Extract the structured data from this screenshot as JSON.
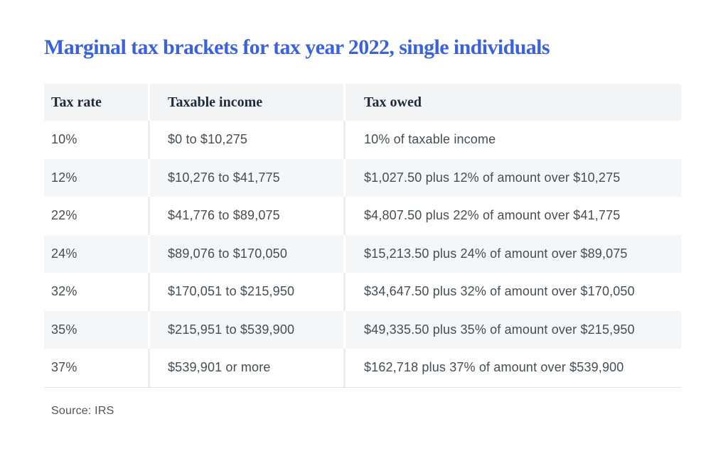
{
  "title": "Marginal tax brackets for tax year 2022, single individuals",
  "source_note": "Source: IRS",
  "colors": {
    "title_blue": "#3a62dc",
    "header_text": "#1f2a3a",
    "body_text": "#454d55",
    "header_bg": "#f3f4f5",
    "row_stripe_bg": "#f5f6f7",
    "divider_on_white": "#ededef",
    "divider_on_gray": "#ffffff",
    "table_bottom_rule": "#dfe0e3",
    "source_text": "#4d545c"
  },
  "table": {
    "columns": [
      "Tax rate",
      "Taxable income",
      "Tax owed"
    ],
    "rows": [
      [
        "10%",
        "$0 to $10,275",
        "10% of taxable income"
      ],
      [
        "12%",
        "$10,276 to $41,775",
        "$1,027.50 plus 12% of amount over $10,275"
      ],
      [
        "22%",
        "$41,776 to $89,075",
        "$4,807.50 plus 22% of amount over $41,775"
      ],
      [
        "24%",
        "$89,076 to $170,050",
        "$15,213.50 plus 24% of amount over $89,075"
      ],
      [
        "32%",
        "$170,051 to $215,950",
        "$34,647.50 plus 32% of amount over $170,050"
      ],
      [
        "35%",
        "$215,951 to $539,900",
        "$49,335.50 plus 35% of amount over $215,950"
      ],
      [
        "37%",
        "$539,901 or more",
        "$162,718 plus 37% of amount over $539,900"
      ]
    ]
  }
}
